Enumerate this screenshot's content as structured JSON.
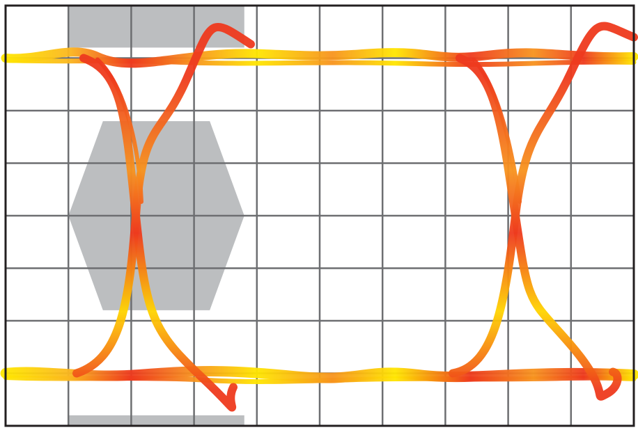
{
  "chart_data": {
    "type": "eye-diagram",
    "title": "",
    "xlabel": "",
    "ylabel": "",
    "grid": true,
    "grid_divisions": {
      "x": 10,
      "y": 8
    },
    "x_unit_intervals": [
      0,
      2
    ],
    "crossings_ui": [
      0.0,
      1.0
    ],
    "levels": {
      "high": 0.75,
      "low": -0.75
    },
    "ylim": [
      -1.0,
      1.0
    ],
    "mask": {
      "center_hexagon": [
        [
          0.2,
          0.0
        ],
        [
          0.31,
          0.45
        ],
        [
          0.65,
          0.45
        ],
        [
          0.76,
          0.0
        ],
        [
          0.65,
          -0.45
        ],
        [
          0.31,
          -0.45
        ]
      ],
      "top_region": {
        "x": [
          0.2,
          0.76
        ],
        "y": [
          0.8,
          1.0
        ]
      },
      "bottom_region": {
        "x": [
          0.2,
          0.76
        ],
        "y": [
          -1.0,
          -0.95
        ]
      }
    },
    "colors": {
      "trace_hot": "#ee3a1e",
      "trace_mid": "#f7931e",
      "trace_cool": "#ffe600",
      "mask": "#bcbec0",
      "grid": "#6d6e71",
      "frame": "#231f20"
    }
  }
}
